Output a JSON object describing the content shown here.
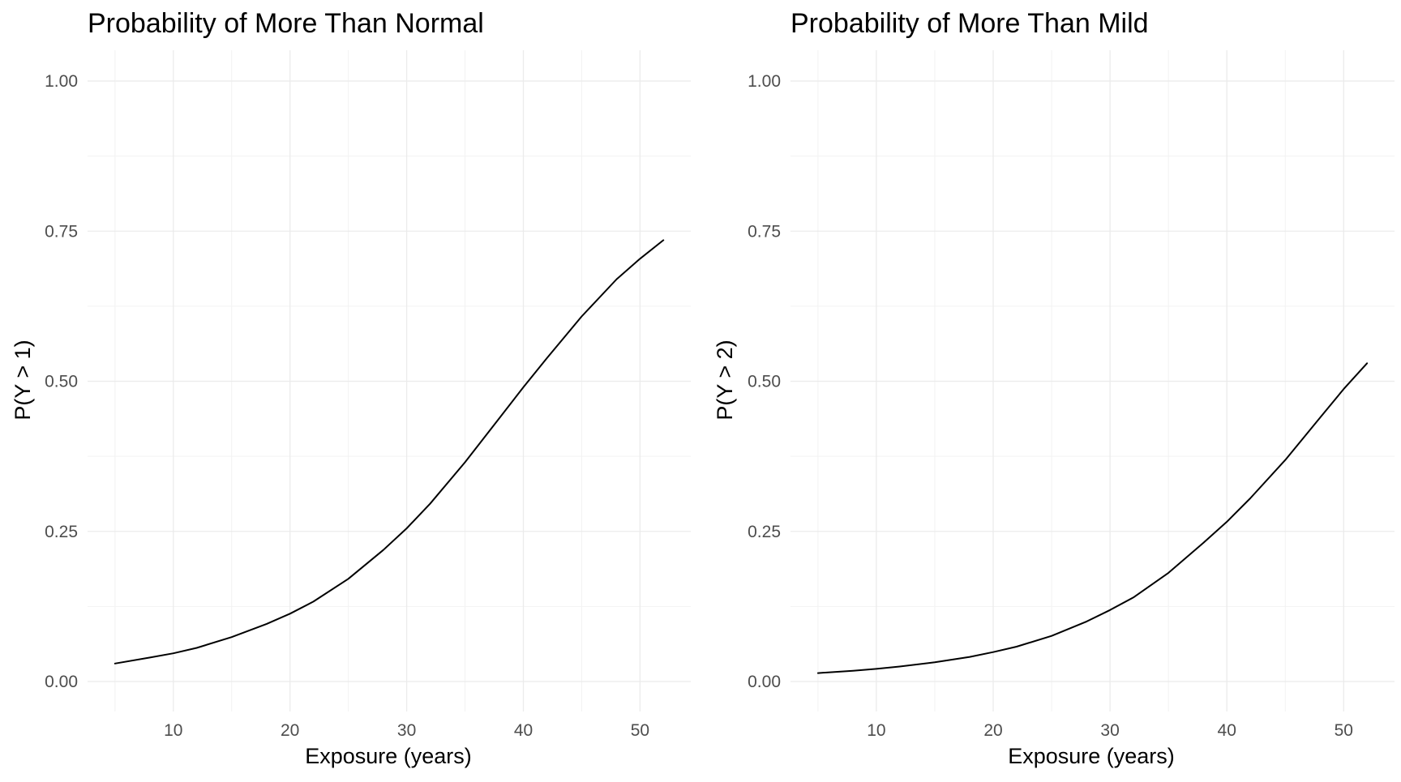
{
  "chart_data": [
    {
      "type": "line",
      "title": "Probability of More Than Normal",
      "xlabel": "Exposure (years)",
      "ylabel": "P(Y > 1)",
      "xlim": [
        5,
        52
      ],
      "ylim": [
        0,
        1
      ],
      "x_ticks": [
        10,
        20,
        30,
        40,
        50
      ],
      "y_ticks": [
        "0.00",
        "0.25",
        "0.50",
        "0.75",
        "1.00"
      ],
      "grid": true,
      "legend": "none",
      "series": [
        {
          "x": [
            5,
            8,
            10,
            12,
            15,
            18,
            20,
            22,
            25,
            28,
            30,
            32,
            35,
            38,
            40,
            42,
            45,
            48,
            50,
            52
          ],
          "y": [
            0.03,
            0.04,
            0.047,
            0.056,
            0.074,
            0.096,
            0.113,
            0.133,
            0.171,
            0.219,
            0.255,
            0.296,
            0.365,
            0.44,
            0.49,
            0.538,
            0.608,
            0.67,
            0.704,
            0.735
          ]
        }
      ]
    },
    {
      "type": "line",
      "title": "Probability of More Than Mild",
      "xlabel": "Exposure (years)",
      "ylabel": "P(Y > 2)",
      "xlim": [
        5,
        52
      ],
      "ylim": [
        0,
        1
      ],
      "x_ticks": [
        10,
        20,
        30,
        40,
        50
      ],
      "y_ticks": [
        "0.00",
        "0.25",
        "0.50",
        "0.75",
        "1.00"
      ],
      "grid": true,
      "legend": "none",
      "series": [
        {
          "x": [
            5,
            8,
            10,
            12,
            15,
            18,
            20,
            22,
            25,
            28,
            30,
            32,
            35,
            38,
            40,
            42,
            45,
            48,
            50,
            52
          ],
          "y": [
            0.014,
            0.018,
            0.021,
            0.025,
            0.032,
            0.041,
            0.049,
            0.058,
            0.076,
            0.1,
            0.119,
            0.14,
            0.181,
            0.231,
            0.266,
            0.305,
            0.369,
            0.44,
            0.487,
            0.53
          ]
        }
      ]
    }
  ]
}
